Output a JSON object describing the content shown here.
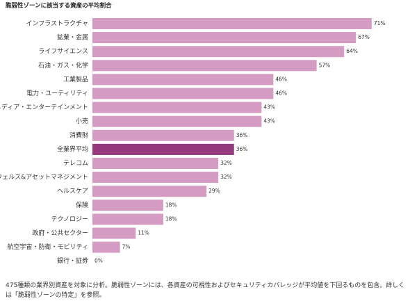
{
  "chart_data": {
    "type": "bar",
    "orientation": "horizontal",
    "title": "脆弱性ゾーンに該当する資産の平均割合",
    "categories": [
      "インフラストラクチャ",
      "鉱業・金属",
      "ライフサイエンス",
      "石油・ガス・化学",
      "工業製品",
      "電力・ユーティリティ",
      "メディア・エンターテインメント",
      "小売",
      "消費財",
      "全業界平均",
      "テレコム",
      "ウェルス&アセットマネジメント",
      "ヘルスケア",
      "保険",
      "テクノロジー",
      "政府・公共セクター",
      "航空宇宙・防衛・モビリティ",
      "銀行・証券"
    ],
    "values": [
      71,
      67,
      64,
      57,
      46,
      46,
      43,
      43,
      36,
      36,
      32,
      32,
      29,
      18,
      18,
      11,
      7,
      0
    ],
    "value_labels": [
      "71%",
      "67%",
      "64%",
      "57%",
      "46%",
      "46%",
      "43%",
      "43%",
      "36%",
      "36%",
      "32%",
      "32%",
      "29%",
      "18%",
      "18%",
      "11%",
      "7%",
      "0%"
    ],
    "colors": [
      "#d49bc3",
      "#d49bc3",
      "#d49bc3",
      "#d49bc3",
      "#d49bc3",
      "#d49bc3",
      "#d49bc3",
      "#d49bc3",
      "#d49bc3",
      "#943a7d",
      "#d49bc3",
      "#d49bc3",
      "#d49bc3",
      "#d49bc3",
      "#d49bc3",
      "#d49bc3",
      "#d49bc3",
      "#d49bc3"
    ],
    "note": "475種類の業界別資産を対象に分析。脆弱性ゾーンには、各資産の可視性およびセキュリティカバレッジが平均値を下回るものを包含。詳しくは「脆弱性ゾーンの特定」を参照。"
  }
}
